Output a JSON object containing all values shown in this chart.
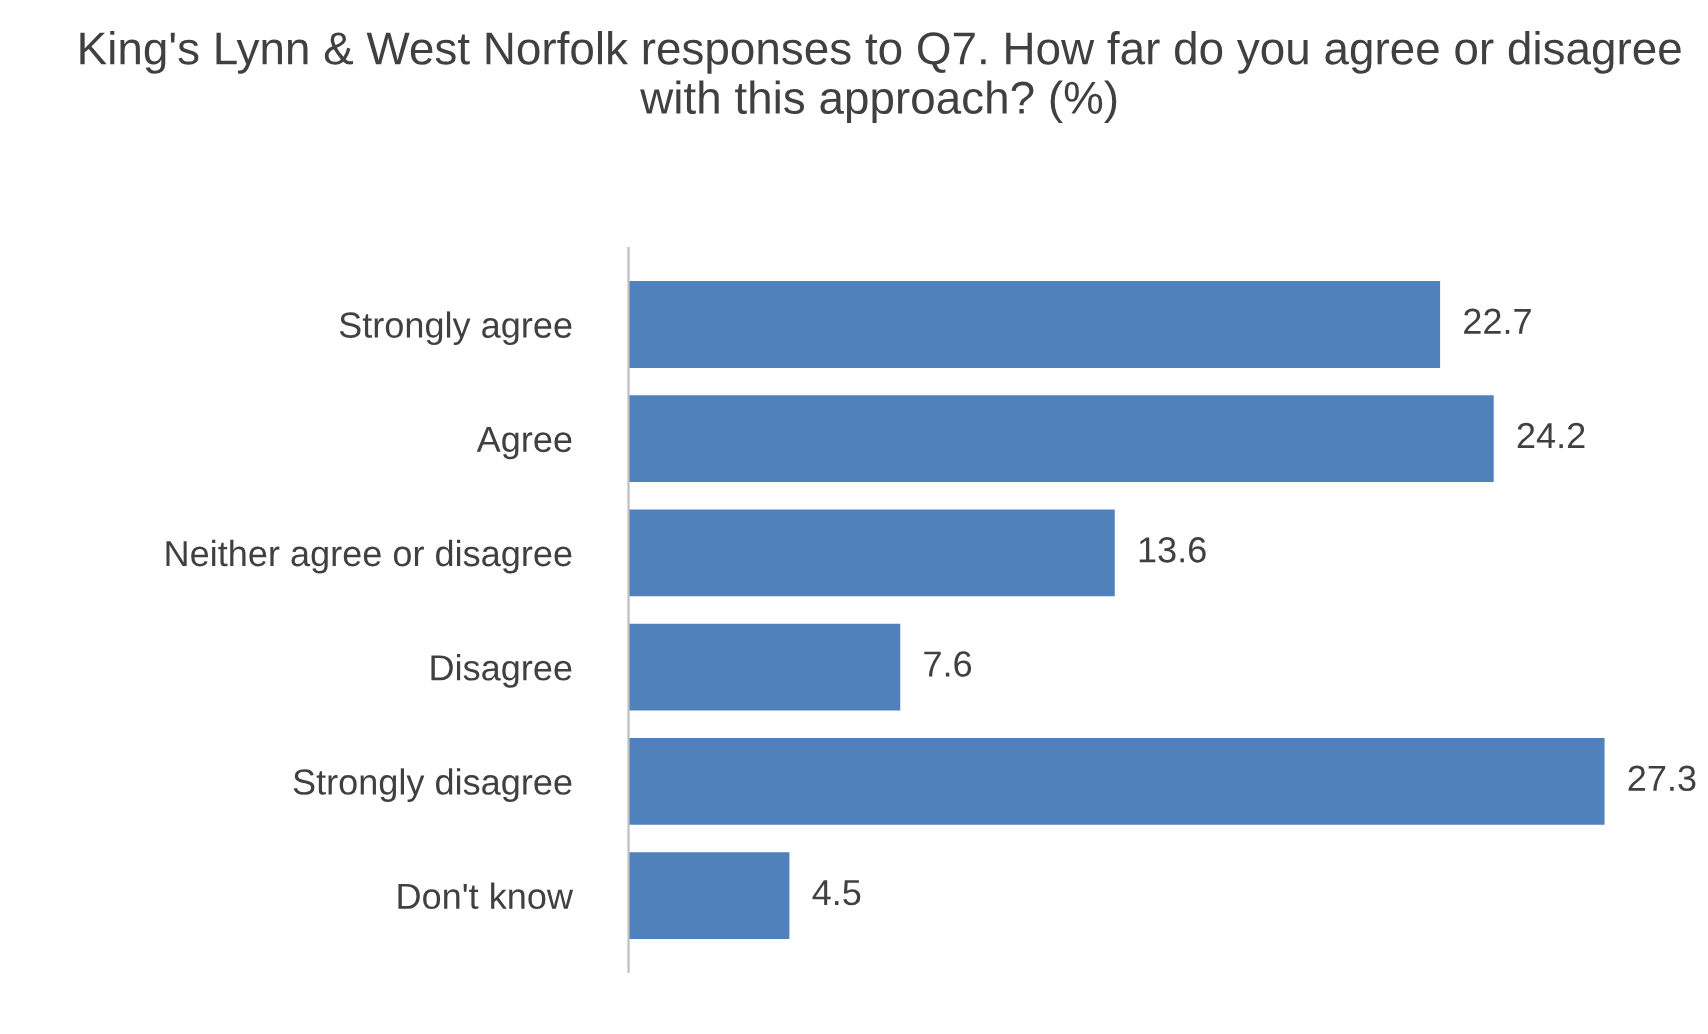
{
  "chart_data": {
    "type": "bar",
    "orientation": "horizontal",
    "title": "King's Lynn & West Norfolk responses to Q7. How far do you agree or disagree with this approach? (%)",
    "categories": [
      "Strongly agree",
      "Agree",
      "Neither agree or disagree",
      "Disagree",
      "Strongly disagree",
      "Don't know"
    ],
    "values": [
      22.7,
      24.2,
      13.6,
      7.6,
      27.3,
      4.5
    ],
    "color": "#4f81bd",
    "data_labels": true,
    "grid": false,
    "legend": false,
    "tick_labels": "y"
  }
}
